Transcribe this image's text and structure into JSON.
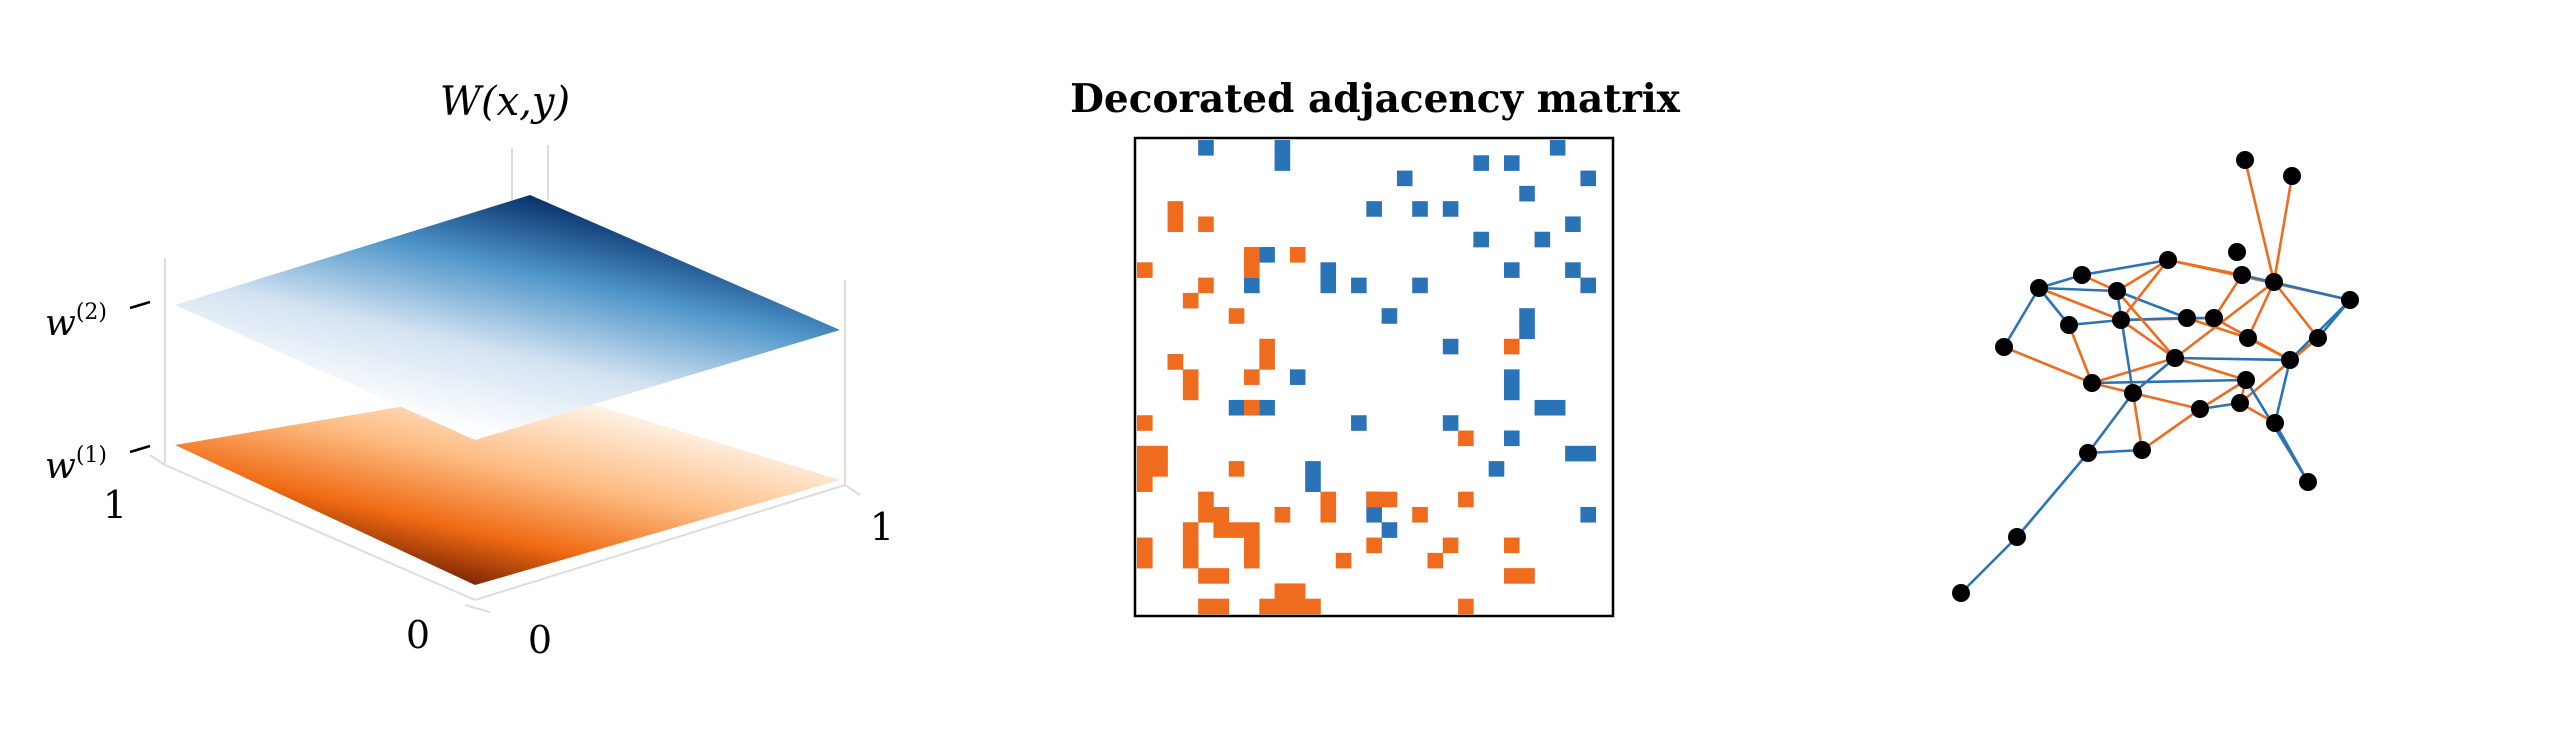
{
  "panel_left": {
    "title": "W(x,y)",
    "levels": [
      {
        "label_base": "w",
        "label_sup": "(2)",
        "scale": "blues"
      },
      {
        "label_base": "w",
        "label_sup": "(1)",
        "scale": "oranges"
      }
    ],
    "axis_ticks": {
      "x_max": "1",
      "x_min": "0",
      "y_min": "0",
      "y_max": "1"
    }
  },
  "panel_middle": {
    "title": "Decorated adjacency matrix",
    "colors": {
      "blue": "#2a73b7",
      "orange": "#ef6c1f"
    },
    "rows": [
      "....B...........................",
      "....................................",
      "................................",
      ".................................",
      "..........................",
      "...........................",
      "..........................",
      "....................................",
      "........................",
      "................................",
      "..............................",
      "......................................",
      "................................",
      "................................"
    ]
  },
  "panel_right": {
    "colors": {
      "blue": "#2a73b7",
      "orange": "#ef6c1f",
      "node": "#000000"
    }
  },
  "chart_data": {
    "type": "heatmap",
    "title": "Decorated adjacency matrix",
    "size": 30,
    "legend": "none",
    "cells": {
      "blue": [
        [
          0,
          4
        ],
        [
          0,
          9
        ],
        [
          0,
          27
        ],
        [
          1,
          9
        ],
        [
          1,
          22
        ],
        [
          1,
          24
        ],
        [
          2,
          17
        ],
        [
          2,
          29
        ],
        [
          3,
          25
        ],
        [
          4,
          15
        ],
        [
          4,
          18
        ],
        [
          4,
          20
        ],
        [
          5,
          28
        ],
        [
          6,
          22
        ],
        [
          6,
          26
        ],
        [
          7,
          8
        ],
        [
          8,
          12
        ],
        [
          8,
          24
        ],
        [
          8,
          28
        ],
        [
          9,
          7
        ],
        [
          9,
          18
        ],
        [
          9,
          12
        ],
        [
          9,
          29
        ],
        [
          9,
          14
        ],
        [
          11,
          16
        ],
        [
          11,
          25
        ],
        [
          12,
          25
        ],
        [
          13,
          20
        ],
        [
          14,
          2
        ],
        [
          15,
          10
        ],
        [
          15,
          24
        ],
        [
          16,
          24
        ],
        [
          17,
          6
        ],
        [
          17,
          8
        ],
        [
          17,
          26
        ],
        [
          17,
          27
        ],
        [
          18,
          14
        ],
        [
          18,
          20
        ],
        [
          19,
          24
        ],
        [
          20,
          28
        ],
        [
          20,
          29
        ],
        [
          21,
          11
        ],
        [
          21,
          23
        ],
        [
          22,
          11
        ],
        [
          23,
          15
        ],
        [
          24,
          15
        ],
        [
          24,
          29
        ],
        [
          25,
          16
        ]
      ],
      "orange": [
        [
          4,
          2
        ],
        [
          5,
          2
        ],
        [
          5,
          4
        ],
        [
          7,
          10
        ],
        [
          7,
          7
        ],
        [
          8,
          0
        ],
        [
          8,
          7
        ],
        [
          9,
          4
        ],
        [
          10,
          3
        ],
        [
          11,
          6
        ],
        [
          13,
          8
        ],
        [
          13,
          24
        ],
        [
          14,
          2
        ],
        [
          14,
          8
        ],
        [
          15,
          7
        ],
        [
          15,
          3
        ],
        [
          16,
          3
        ],
        [
          17,
          7
        ],
        [
          18,
          0
        ],
        [
          19,
          21
        ],
        [
          20,
          0
        ],
        [
          20,
          1
        ],
        [
          21,
          0
        ],
        [
          21,
          1
        ],
        [
          21,
          6
        ],
        [
          22,
          0
        ],
        [
          23,
          4
        ],
        [
          23,
          12
        ],
        [
          23,
          15
        ],
        [
          23,
          16
        ],
        [
          23,
          21
        ],
        [
          24,
          4
        ],
        [
          24,
          5
        ],
        [
          24,
          9
        ],
        [
          24,
          18
        ],
        [
          24,
          12
        ],
        [
          25,
          5
        ],
        [
          25,
          6
        ],
        [
          25,
          3
        ],
        [
          25,
          7
        ],
        [
          26,
          0
        ],
        [
          26,
          3
        ],
        [
          26,
          7
        ],
        [
          26,
          15
        ],
        [
          26,
          20
        ],
        [
          26,
          24
        ],
        [
          27,
          0
        ],
        [
          27,
          3
        ],
        [
          27,
          7
        ],
        [
          27,
          13
        ],
        [
          27,
          19
        ],
        [
          28,
          4
        ],
        [
          28,
          5
        ],
        [
          28,
          25
        ],
        [
          28,
          24
        ],
        [
          29,
          10
        ],
        [
          29,
          9
        ],
        [
          30,
          9
        ],
        [
          30,
          10
        ],
        [
          30,
          4
        ],
        [
          30,
          5
        ],
        [
          30,
          11
        ],
        [
          30,
          8
        ],
        [
          30,
          21
        ]
      ]
    }
  }
}
